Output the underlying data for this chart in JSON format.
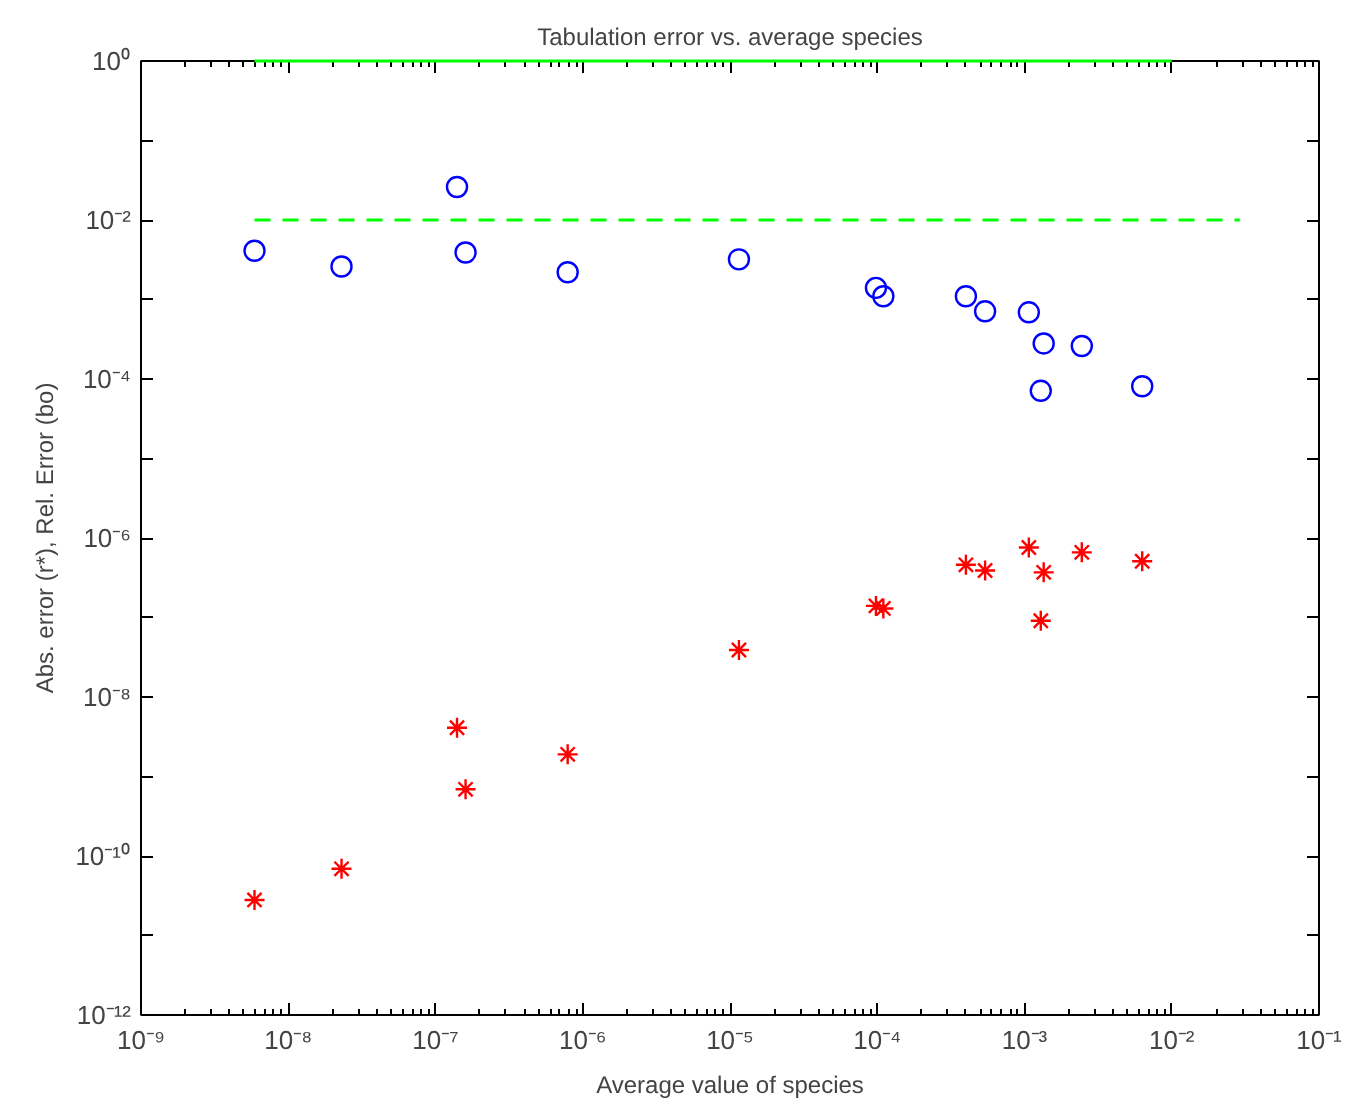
{
  "chart_data": {
    "type": "scatter",
    "title": "Tabulation error vs. average species",
    "xlabel": "Average value of species",
    "ylabel": "Abs. error (r*), Rel. Error (bo)",
    "log": "xy",
    "grid": false,
    "xlim": [
      1e-09,
      0.1
    ],
    "ylim": [
      1e-12,
      1
    ],
    "xticks": [
      {
        "value": 1e-09,
        "label": "10⁻⁹"
      },
      {
        "value": 1e-08,
        "label": "10⁻⁸"
      },
      {
        "value": 1e-07,
        "label": "10⁻⁷"
      },
      {
        "value": 1e-06,
        "label": "10⁻⁶"
      },
      {
        "value": 1e-05,
        "label": "10⁻⁵"
      },
      {
        "value": 0.0001,
        "label": "10⁻⁴"
      },
      {
        "value": 0.001,
        "label": "10⁻³"
      },
      {
        "value": 0.01,
        "label": "10⁻²"
      },
      {
        "value": 0.1,
        "label": "10⁻¹"
      }
    ],
    "yticks": [
      {
        "value": 1e-12,
        "label": "10⁻¹²"
      },
      {
        "value": 1e-11,
        "label": null
      },
      {
        "value": 1e-10,
        "label": "10⁻¹⁰"
      },
      {
        "value": 1e-09,
        "label": null
      },
      {
        "value": 1e-08,
        "label": "10⁻⁸"
      },
      {
        "value": 1e-07,
        "label": null
      },
      {
        "value": 1e-06,
        "label": "10⁻⁶"
      },
      {
        "value": 1e-05,
        "label": null
      },
      {
        "value": 0.0001,
        "label": "10⁻⁴"
      },
      {
        "value": 0.001,
        "label": null
      },
      {
        "value": 0.01,
        "label": "10⁻²"
      },
      {
        "value": 0.1,
        "label": null
      },
      {
        "value": 1,
        "label": "10⁰"
      }
    ],
    "series": [
      {
        "type": "line",
        "color": "#00ff00",
        "line_style": "solid",
        "marker": "none",
        "x": [
          5.9e-09,
          0.01
        ],
        "values": [
          1,
          1
        ]
      },
      {
        "type": "line",
        "color": "#00ff00",
        "line_style": "dashed",
        "marker": "none",
        "x": [
          5.9e-09,
          0.029
        ],
        "values": [
          0.01,
          0.01
        ]
      },
      {
        "color": "#0000ff",
        "marker": "circle",
        "x": [
          5.9e-09,
          2.3e-08,
          1.4e-07,
          1.6e-07,
          7.9e-07,
          1.15e-05,
          9.8e-05,
          0.00011,
          0.0004,
          0.00054,
          0.00107,
          0.00135,
          0.00245,
          0.00129,
          0.0063
        ],
        "values": [
          0.0041,
          0.0026,
          0.026,
          0.0039,
          0.0022,
          0.0032,
          0.0014,
          0.0011,
          0.0011,
          0.00071,
          0.00069,
          0.00028,
          0.00026,
          7.1e-05,
          8.1e-05
        ]
      },
      {
        "color": "#ff0000",
        "marker": "cross",
        "x": [
          5.9e-09,
          2.3e-08,
          1.4e-07,
          1.6e-07,
          7.9e-07,
          1.15e-05,
          9.8e-05,
          0.00011,
          0.0004,
          0.00054,
          0.00107,
          0.00135,
          0.00245,
          0.00129,
          0.0063
        ],
        "values": [
          2.8e-11,
          6.9e-11,
          4.1e-09,
          6.9e-10,
          1.9e-09,
          3.9e-08,
          1.4e-07,
          1.3e-07,
          4.6e-07,
          3.9e-07,
          7.6e-07,
          3.7e-07,
          6.6e-07,
          9.1e-08,
          5.1e-07
        ]
      }
    ]
  }
}
